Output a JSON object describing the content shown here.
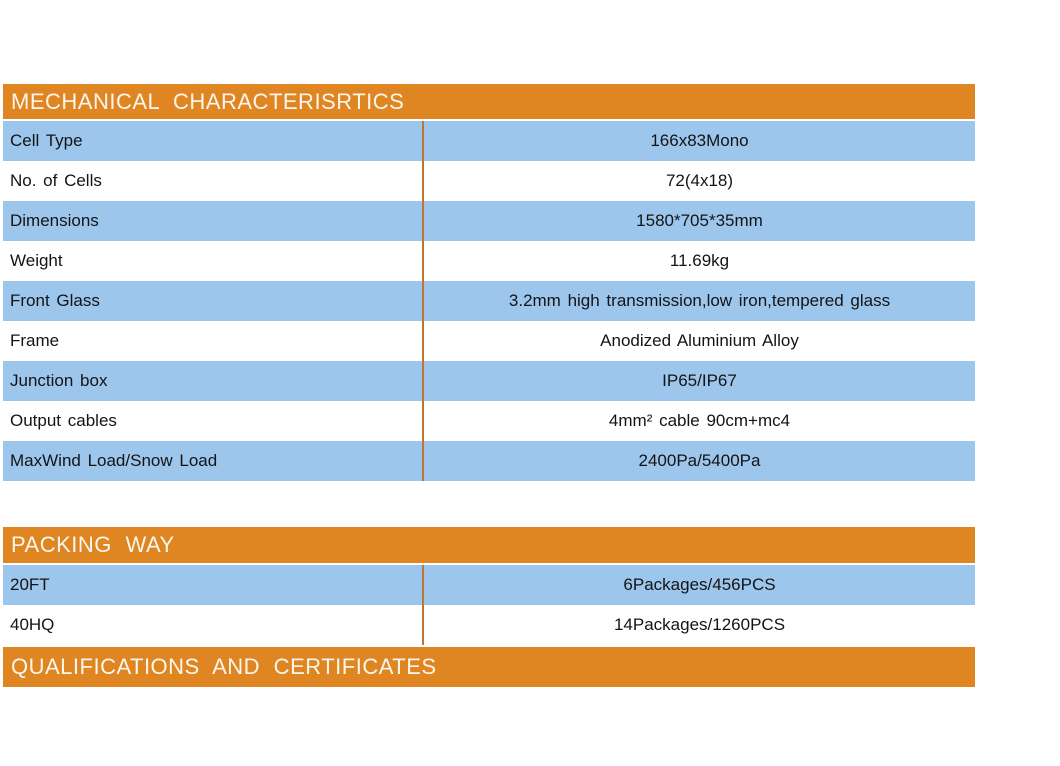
{
  "colors": {
    "section_header_bg": "#df8522",
    "section_header_text": "#faf6ec",
    "row_blue": "#9dc6ec",
    "row_white": "#ffffff",
    "column_divider": "#c2752e",
    "row_text": "#141414"
  },
  "sections": [
    {
      "id": "mechanical",
      "title": "MECHANICAL CHARACTERISRTICS",
      "rows": [
        {
          "label": "Cell Type",
          "value": "166x83Mono"
        },
        {
          "label": "No. of Cells",
          "value": "72(4x18)"
        },
        {
          "label": "Dimensions",
          "value": "1580*705*35mm"
        },
        {
          "label": "Weight",
          "value": "11.69kg"
        },
        {
          "label": "Front Glass",
          "value": "3.2mm high transmission,low iron,tempered glass"
        },
        {
          "label": "Frame",
          "value": "Anodized Aluminium Alloy"
        },
        {
          "label": "Junction box",
          "value": "IP65/IP67"
        },
        {
          "label": "Output cables",
          "value": "4mm² cable 90cm+mc4"
        },
        {
          "label": "MaxWind Load/Snow Load",
          "value": "2400Pa/5400Pa"
        }
      ]
    },
    {
      "id": "packing",
      "title": "PACKING WAY",
      "rows": [
        {
          "label": "20FT",
          "value": "6Packages/456PCS"
        },
        {
          "label": "40HQ",
          "value": "14Packages/1260PCS"
        }
      ]
    },
    {
      "id": "qualifications",
      "title": "QUALIFICATIONS AND CERTIFICATES",
      "rows": []
    }
  ]
}
